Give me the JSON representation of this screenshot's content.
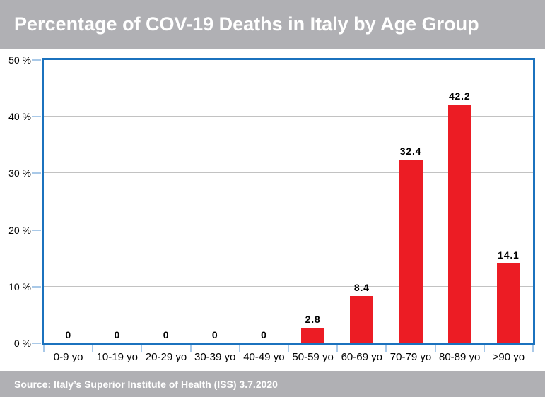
{
  "header": {
    "title": "Percentage of COV-19 Deaths in Italy by Age Group"
  },
  "footer": {
    "source": "Source: Italy’s Superior Institute of Health (ISS) 3.7.2020"
  },
  "colors": {
    "band_gray": "#B0B0B4",
    "bar_red": "#EC1C24",
    "frame_blue": "#1B72BE",
    "tick_light_blue": "#A9C9E8",
    "gridline_gray": "#C2C2C2",
    "text_black": "#000000",
    "text_white": "#FFFFFF"
  },
  "chart_data": {
    "type": "bar",
    "title": "Percentage of COV-19 Deaths in Italy by Age Group",
    "categories": [
      "0-9 yo",
      "10-19 yo",
      "20-29 yo",
      "30-39 yo",
      "40-49 yo",
      "50-59 yo",
      "60-69 yo",
      "70-79 yo",
      "80-89 yo",
      ">90 yo"
    ],
    "values": [
      0,
      0,
      0,
      0,
      0,
      2.8,
      8.4,
      32.4,
      42.2,
      14.1
    ],
    "bar_labels": [
      "0",
      "0",
      "0",
      "0",
      "0",
      "2.8",
      "8.4",
      "32.4",
      "42.2",
      "14.1"
    ],
    "xlabel": "",
    "ylabel": "",
    "ylim": [
      0,
      50
    ],
    "yticks": [
      0,
      10,
      20,
      30,
      40,
      50
    ],
    "ytick_labels": [
      "0 %",
      "10 %",
      "20 %",
      "30 %",
      "40 %",
      "50 %"
    ],
    "gridline_values": [
      10,
      20,
      30,
      40
    ],
    "grid": "horizontal",
    "legend": "none",
    "bar_color": "#EC1C24",
    "source": "Source: Italy’s Superior Institute of Health (ISS) 3.7.2020"
  }
}
